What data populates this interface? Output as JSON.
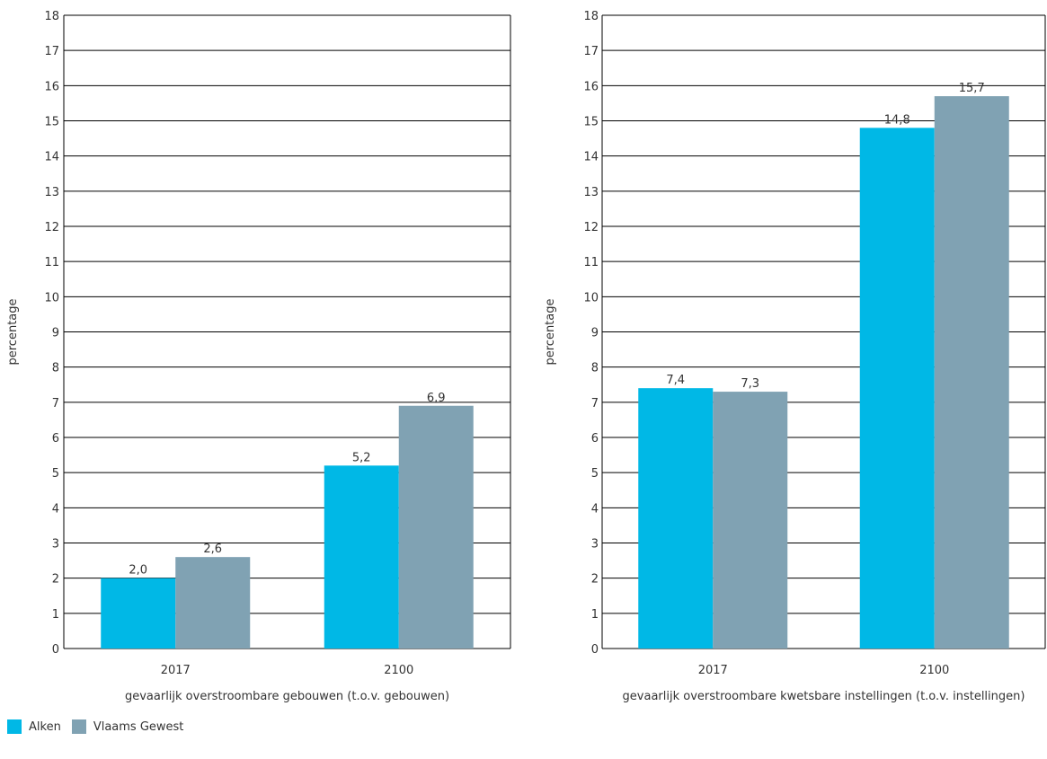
{
  "legend": [
    {
      "label": "Alken",
      "color": "#00B8E6"
    },
    {
      "label": "Vlaams Gewest",
      "color": "#80A2B3"
    }
  ],
  "chart_data": [
    {
      "type": "bar",
      "categories": [
        "2017",
        "2100"
      ],
      "series": [
        {
          "name": "Alken",
          "values": [
            2.0,
            5.2
          ],
          "labels": [
            "2,0",
            "5,2"
          ]
        },
        {
          "name": "Vlaams Gewest",
          "values": [
            2.6,
            6.9
          ],
          "labels": [
            "2,6",
            "6,9"
          ]
        }
      ],
      "xlabel": "gevaarlijk overstroombare gebouwen (t.o.v. gebouwen)",
      "ylabel": "percentage",
      "ylim": [
        0,
        18
      ],
      "yticks": [
        "0",
        "1",
        "2",
        "3",
        "4",
        "5",
        "6",
        "7",
        "8",
        "9",
        "10",
        "11",
        "12",
        "13",
        "14",
        "15",
        "16",
        "17",
        "18"
      ],
      "grid": true
    },
    {
      "type": "bar",
      "categories": [
        "2017",
        "2100"
      ],
      "series": [
        {
          "name": "Alken",
          "values": [
            7.4,
            14.8
          ],
          "labels": [
            "7,4",
            "14,8"
          ]
        },
        {
          "name": "Vlaams Gewest",
          "values": [
            7.3,
            15.7
          ],
          "labels": [
            "7,3",
            "15,7"
          ]
        }
      ],
      "xlabel": "gevaarlijk overstroombare kwetsbare instellingen (t.o.v. instellingen)",
      "ylabel": "percentage",
      "ylim": [
        0,
        18
      ],
      "yticks": [
        "0",
        "1",
        "2",
        "3",
        "4",
        "5",
        "6",
        "7",
        "8",
        "9",
        "10",
        "11",
        "12",
        "13",
        "14",
        "15",
        "16",
        "17",
        "18"
      ],
      "grid": true
    }
  ]
}
